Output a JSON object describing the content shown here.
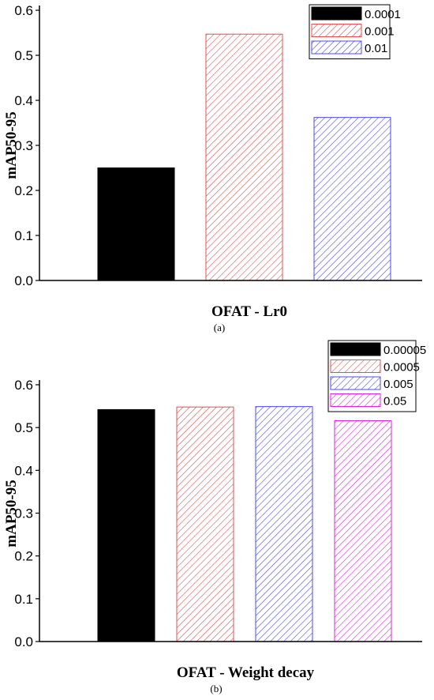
{
  "chart_data": [
    {
      "type": "bar",
      "xlabel": "OFAT - Lr0",
      "ylabel": "mAP50-95",
      "panel_label": "(a)",
      "ylim": [
        0,
        0.6
      ],
      "yticks": [
        "0.0",
        "0.1",
        "0.2",
        "0.3",
        "0.4",
        "0.5",
        "0.6"
      ],
      "grid": false,
      "legend_position": "top-right",
      "series": [
        {
          "name": "0.0001",
          "value": 0.25,
          "color": "#000000",
          "pattern": "solid"
        },
        {
          "name": "0.001",
          "value": 0.547,
          "color": "#e05050",
          "pattern": "hatch"
        },
        {
          "name": "0.01",
          "value": 0.362,
          "color": "#4a4af0",
          "pattern": "hatch"
        }
      ]
    },
    {
      "type": "bar",
      "xlabel": "OFAT - Weight decay",
      "ylabel": "mAP50-95",
      "panel_label": "(b)",
      "ylim": [
        0,
        0.6
      ],
      "yticks": [
        "0.0",
        "0.1",
        "0.2",
        "0.3",
        "0.4",
        "0.5",
        "0.6"
      ],
      "grid": false,
      "legend_position": "top-right",
      "series": [
        {
          "name": "0.00005",
          "value": 0.542,
          "color": "#000000",
          "pattern": "solid"
        },
        {
          "name": "0.0005",
          "value": 0.548,
          "color": "#e05050",
          "pattern": "hatch"
        },
        {
          "name": "0.005",
          "value": 0.549,
          "color": "#4a4af0",
          "pattern": "hatch"
        },
        {
          "name": "0.05",
          "value": 0.516,
          "color": "#e020e0",
          "pattern": "hatch"
        }
      ]
    }
  ]
}
